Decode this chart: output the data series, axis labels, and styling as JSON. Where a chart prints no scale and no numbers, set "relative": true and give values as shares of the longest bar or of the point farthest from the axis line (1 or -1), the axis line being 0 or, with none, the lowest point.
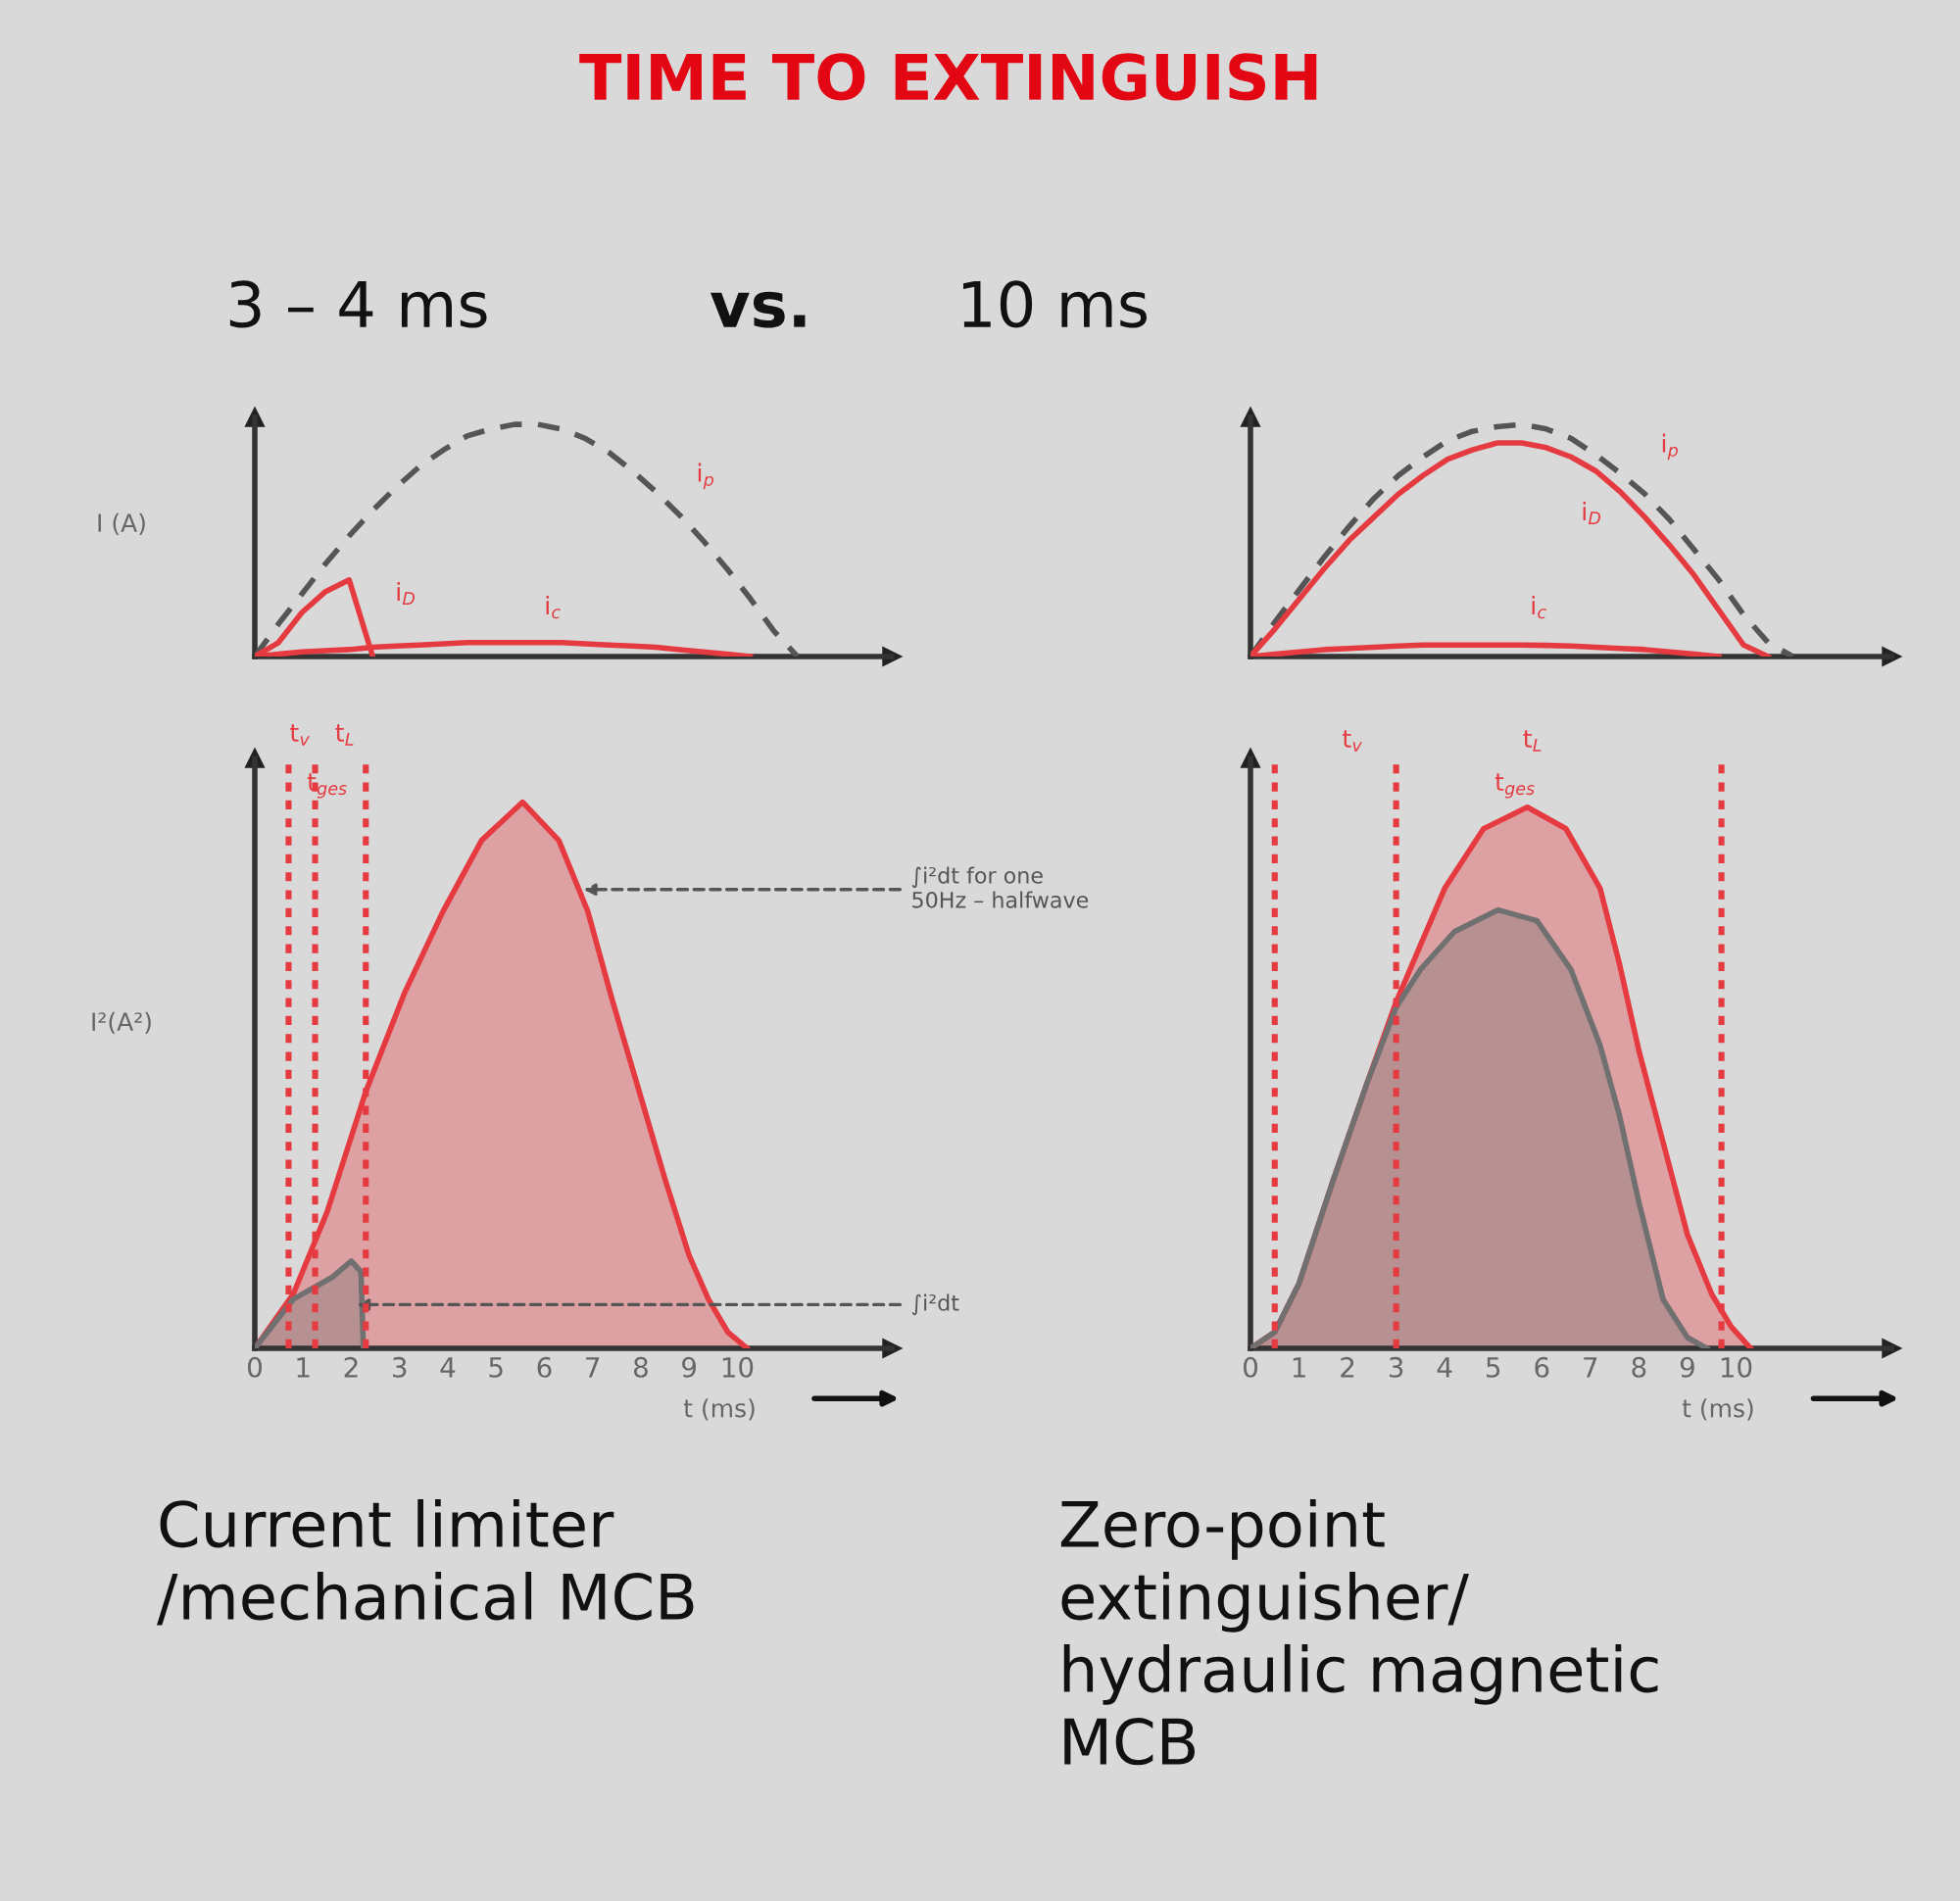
{
  "chart_data": [
    {
      "type": "line",
      "title": "TIME TO EXTINGUISH",
      "subtitle": "3 – 4 ms",
      "ylabel": "I (A)",
      "relative": true,
      "tick_labels": false,
      "categories": [
        null,
        null,
        null,
        null,
        null,
        null,
        null,
        null,
        null,
        null,
        null,
        null,
        null,
        null,
        null,
        null,
        null,
        null,
        null,
        null,
        null,
        null,
        null,
        null,
        null,
        null,
        null,
        null
      ],
      "series": [
        {
          "color": "#555555",
          "line_style": "dashed",
          "values": [
            0,
            0.14,
            0.27,
            0.4,
            0.52,
            0.63,
            0.73,
            0.82,
            0.89,
            0.95,
            0.98,
            1.0,
            1.0,
            0.98,
            0.94,
            0.88,
            0.8,
            0.71,
            0.61,
            0.5,
            0.38,
            0.25,
            0.11,
            0,
            null,
            null,
            null,
            null
          ]
        },
        {
          "color": "#e53a40",
          "line_style": "solid",
          "values": [
            0,
            0.06,
            0.19,
            0.28,
            0.33,
            0,
            null,
            null,
            null,
            null,
            null,
            null,
            null,
            null,
            null,
            null,
            null,
            null,
            null,
            null,
            null,
            null,
            null,
            null,
            null,
            null,
            null,
            null
          ]
        },
        {
          "color": "#e53a40",
          "line_style": "solid",
          "values": [
            0,
            0.01,
            0.02,
            0.025,
            0.03,
            0.04,
            0.045,
            0.05,
            0.055,
            0.06,
            0.06,
            0.06,
            0.06,
            0.06,
            0.055,
            0.05,
            0.045,
            0.04,
            0.03,
            0.02,
            0.01,
            0,
            null,
            null,
            null,
            null,
            null,
            null
          ]
        }
      ],
      "annotations": [
        "vs.",
        "i$_{p}$",
        "i$_{D}$",
        "i$_{c}$"
      ]
    },
    {
      "type": "line",
      "subtitle": "10 ms",
      "relative": true,
      "tick_labels": false,
      "categories": [
        null,
        null,
        null,
        null,
        null,
        null,
        null,
        null,
        null,
        null,
        null,
        null,
        null,
        null,
        null,
        null,
        null,
        null,
        null,
        null,
        null,
        null,
        null,
        null,
        null,
        null,
        null
      ],
      "series": [
        {
          "color": "#555555",
          "line_style": "dashed",
          "values": [
            0,
            0.15,
            0.29,
            0.43,
            0.56,
            0.68,
            0.78,
            0.86,
            0.93,
            0.97,
            0.99,
            1.0,
            0.98,
            0.94,
            0.87,
            0.79,
            0.7,
            0.59,
            0.46,
            0.33,
            0.18,
            0.06,
            0,
            null,
            null,
            null,
            null
          ]
        },
        {
          "color": "#e53a40",
          "line_style": "solid",
          "values": [
            0,
            0.12,
            0.25,
            0.38,
            0.5,
            0.6,
            0.7,
            0.78,
            0.85,
            0.89,
            0.92,
            0.92,
            0.9,
            0.86,
            0.8,
            0.71,
            0.6,
            0.48,
            0.35,
            0.2,
            0.05,
            0,
            null,
            null,
            null,
            null,
            null
          ]
        },
        {
          "color": "#e53a40",
          "line_style": "solid",
          "values": [
            0,
            0.01,
            0.02,
            0.03,
            0.035,
            0.04,
            0.045,
            0.05,
            0.05,
            0.05,
            0.05,
            0.05,
            0.048,
            0.045,
            0.04,
            0.035,
            0.03,
            0.02,
            0.01,
            0,
            null,
            null,
            null,
            null,
            null,
            null,
            null
          ]
        }
      ],
      "annotations": [
        "i$_{p}$",
        "i$_{D}$",
        "i$_{c}$"
      ]
    },
    {
      "type": "area",
      "xlabel": "t (ms)",
      "ylabel": "I²(A²)",
      "relative": true,
      "xlim": [
        0,
        13.2
      ],
      "xticks": [
        0,
        1,
        2,
        3,
        4,
        5,
        6,
        7,
        8,
        9,
        10
      ],
      "tick_labels": "x",
      "series": [
        {
          "color": "#e53a40",
          "x": [
            0,
            0.8,
            1.5,
            2.3,
            3.1,
            3.9,
            4.7,
            5.55,
            6.3,
            6.9,
            7.4,
            8,
            8.5,
            9,
            9.4,
            9.8,
            10.2
          ],
          "values": [
            0,
            0.1,
            0.25,
            0.47,
            0.65,
            0.8,
            0.93,
            1,
            0.93,
            0.8,
            0.64,
            0.46,
            0.31,
            0.17,
            0.09,
            0.03,
            0
          ]
        },
        {
          "color": "#707070",
          "x": [
            0,
            0.8,
            1.6,
            2.0,
            2.2,
            2.25
          ],
          "values": [
            0,
            0.09,
            0.13,
            0.16,
            0.14,
            0
          ]
        }
      ],
      "ref_lines": [
        {
          "axis": "x",
          "value": 0.7,
          "color": "#e53a40",
          "line_style": "dotted"
        },
        {
          "axis": "x",
          "value": 1.25,
          "color": "#e53a40",
          "line_style": "dotted"
        },
        {
          "axis": "x",
          "value": 2.3,
          "color": "#e53a40",
          "line_style": "dotted"
        }
      ],
      "annotations": [
        "t$_{v}$",
        "t$_{L}$",
        "t$_{ges}$",
        {
          "text": "∫i²dt for one\n50Hz – halfwave",
          "x": 6.7,
          "y": 0.84
        },
        {
          "text": "∫i²dt",
          "x": 2.0,
          "y": 0.08
        },
        "Current limiter\n/mechanical MCB"
      ]
    },
    {
      "type": "area",
      "xlabel": "t (ms)",
      "relative": true,
      "xlim": [
        0,
        13.2
      ],
      "xticks": [
        0,
        1,
        2,
        3,
        4,
        5,
        6,
        7,
        8,
        9,
        10
      ],
      "tick_labels": "x",
      "series": [
        {
          "color": "#e53a40",
          "x": [
            0,
            0.5,
            1,
            1.7,
            2.4,
            3.0,
            4.0,
            4.8,
            5.7,
            6.5,
            7.2,
            7.6,
            8.0,
            8.5,
            9.0,
            9.5,
            9.9,
            10.3
          ],
          "values": [
            0,
            0.03,
            0.12,
            0.31,
            0.49,
            0.64,
            0.85,
            0.96,
            1,
            0.96,
            0.85,
            0.71,
            0.55,
            0.38,
            0.21,
            0.1,
            0.04,
            0
          ]
        },
        {
          "color": "#707070",
          "x": [
            0,
            0.5,
            1,
            1.7,
            2.4,
            3.0,
            3.5,
            4.2,
            5.1,
            5.9,
            6.6,
            7.2,
            7.6,
            8.0,
            8.5,
            9.0,
            9.4
          ],
          "values": [
            0,
            0.03,
            0.12,
            0.31,
            0.49,
            0.63,
            0.7,
            0.77,
            0.81,
            0.79,
            0.7,
            0.56,
            0.43,
            0.27,
            0.09,
            0.02,
            0
          ]
        }
      ],
      "ref_lines": [
        {
          "axis": "x",
          "value": 0.5,
          "color": "#e53a40",
          "line_style": "dotted"
        },
        {
          "axis": "x",
          "value": 3.0,
          "color": "#e53a40",
          "line_style": "dotted"
        },
        {
          "axis": "x",
          "value": 9.7,
          "color": "#e53a40",
          "line_style": "dotted"
        }
      ],
      "annotations": [
        "t$_{v}$",
        "t$_{L}$",
        "t$_{ges}$",
        "Zero-point\nextinguisher/\nhydraulic magnetic\nMCB"
      ]
    }
  ]
}
